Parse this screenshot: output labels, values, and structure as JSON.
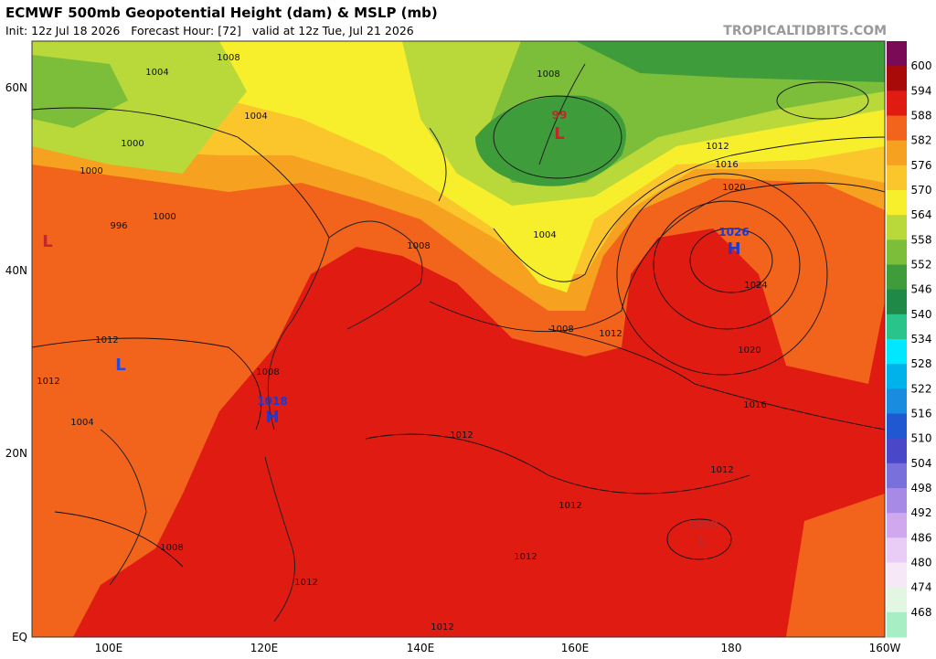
{
  "header": {
    "title": "ECMWF 500mb Geopotential Height (dam) & MSLP (mb)",
    "subtitle": "Init: 12z Jul 18 2026   Forecast Hour: [72]   valid at 12z Tue, Jul 21 2026",
    "source": "TROPICALTIDBITS.COM"
  },
  "map": {
    "lon_labels": [
      "100E",
      "120E",
      "140E",
      "160E",
      "180",
      "160W"
    ],
    "lat_labels": [
      "60N",
      "40N",
      "20N",
      "EQ"
    ],
    "centers": [
      {
        "type": "H",
        "pressure": "1026"
      },
      {
        "type": "H",
        "pressure": "1018"
      },
      {
        "type": "L",
        "pressure": "1009"
      },
      {
        "type": "L",
        "pressure": "99"
      },
      {
        "type": "L"
      },
      {
        "type": "L"
      }
    ],
    "isobar_labels": [
      "1008",
      "1004",
      "1004",
      "1000",
      "1000",
      "1000",
      "996",
      "1008",
      "1012",
      "1012",
      "1004",
      "1008",
      "1012",
      "1008",
      "1012",
      "1016",
      "1020",
      "1024",
      "1020",
      "1016",
      "1012",
      "1012",
      "1012",
      "1012",
      "1012",
      "1008",
      "1004",
      "1012",
      "1008"
    ]
  },
  "colorbar": {
    "levels": [
      600,
      594,
      588,
      582,
      576,
      570,
      564,
      558,
      552,
      546,
      540,
      534,
      528,
      522,
      516,
      510,
      504,
      498,
      492,
      486,
      480,
      474,
      468
    ],
    "colors": [
      "#7a0a55",
      "#a80a0a",
      "#e01b12",
      "#f2631b",
      "#f6a11f",
      "#fbc52c",
      "#f7ef2c",
      "#b9d93a",
      "#7cbd3a",
      "#3f9c3b",
      "#1f8a48",
      "#29c48a",
      "#00e8ff",
      "#00b2ea",
      "#1a8ce0",
      "#2058d2",
      "#4a48c8",
      "#7a70dc",
      "#a78ae6",
      "#cfa8ee",
      "#eacdf6",
      "#f6e8f6",
      "#e2f6e2",
      "#a8eec4"
    ]
  }
}
